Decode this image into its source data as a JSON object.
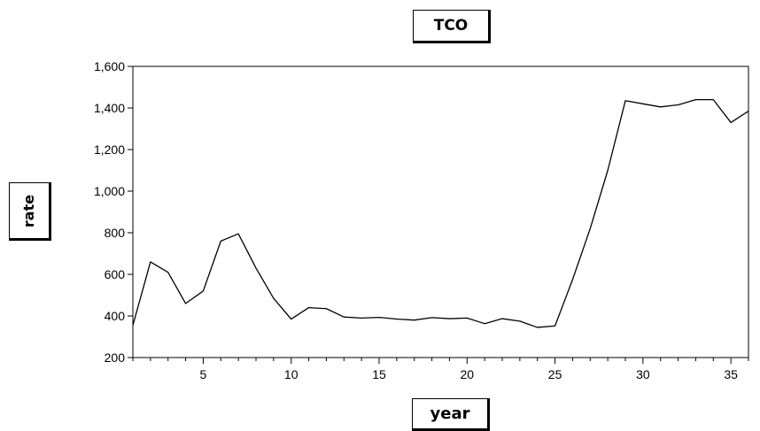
{
  "chart_data": {
    "type": "line",
    "title": "TCO",
    "xlabel": "year",
    "ylabel": "rate",
    "xlim": [
      1,
      36
    ],
    "ylim": [
      200,
      1600
    ],
    "x_ticks": [
      5,
      10,
      15,
      20,
      25,
      30,
      35
    ],
    "y_ticks": [
      200,
      400,
      600,
      800,
      1000,
      1200,
      1400,
      1600
    ],
    "y_tick_labels": [
      "200",
      "400",
      "600",
      "800",
      "1,000",
      "1,200",
      "1,400",
      "1,600"
    ],
    "grid": false,
    "x": [
      1,
      2,
      3,
      4,
      5,
      6,
      7,
      8,
      9,
      10,
      11,
      12,
      13,
      14,
      15,
      16,
      17,
      18,
      19,
      20,
      21,
      22,
      23,
      24,
      25,
      26,
      27,
      28,
      29,
      30,
      31,
      32,
      33,
      34,
      35,
      36
    ],
    "series": [
      {
        "values": [
          355,
          660,
          610,
          460,
          520,
          760,
          795,
          630,
          485,
          385,
          440,
          435,
          395,
          390,
          393,
          385,
          380,
          392,
          387,
          390,
          363,
          387,
          375,
          345,
          352,
          575,
          820,
          1100,
          1435,
          1420,
          1405,
          1415,
          1440,
          1440,
          1330,
          1385
        ],
        "color": "#000000"
      }
    ]
  }
}
